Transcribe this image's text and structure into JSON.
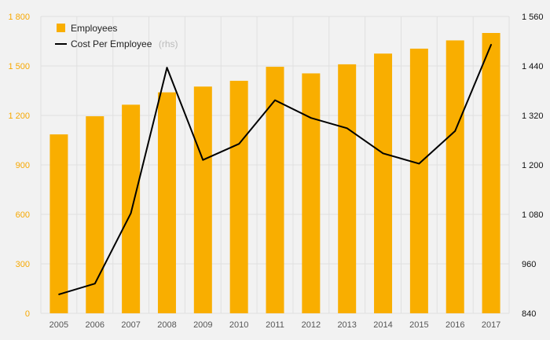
{
  "chart_data": {
    "type": "bar",
    "categories": [
      "2005",
      "2006",
      "2007",
      "2008",
      "2009",
      "2010",
      "2011",
      "2012",
      "2013",
      "2014",
      "2015",
      "2016",
      "2017"
    ],
    "series": [
      {
        "name": "Employees",
        "type": "bar",
        "axis": "left",
        "color": "#f9ae00",
        "values": [
          1085,
          1195,
          1265,
          1340,
          1375,
          1410,
          1495,
          1455,
          1510,
          1575,
          1605,
          1655,
          1700
        ]
      },
      {
        "name": "Cost Per Employee",
        "name_suffix": "(rhs)",
        "type": "line",
        "axis": "right",
        "color": "#000000",
        "values": [
          886,
          912,
          1083,
          1436,
          1212,
          1251,
          1357,
          1314,
          1289,
          1228,
          1203,
          1282,
          1492
        ]
      }
    ],
    "y_left": {
      "range": [
        0,
        1800
      ],
      "ticks": [
        0,
        300,
        600,
        900,
        1200,
        1500,
        1800
      ],
      "tick_labels": [
        "0",
        "300",
        "600",
        "900",
        "1 200",
        "1 500",
        "1 800"
      ],
      "color": "#f7a800"
    },
    "y_right": {
      "range": [
        840,
        1560
      ],
      "ticks": [
        840,
        960,
        1080,
        1200,
        1320,
        1440,
        1560
      ],
      "tick_labels": [
        "840",
        "960",
        "1 080",
        "1 200",
        "1 320",
        "1 440",
        "1 560"
      ],
      "color": "#111111"
    },
    "title": "",
    "xlabel": "",
    "ylabel": "",
    "grid": true,
    "legend_placement": "top-left",
    "background": "#f2f2f2",
    "grid_color": "#e0e0e0"
  }
}
